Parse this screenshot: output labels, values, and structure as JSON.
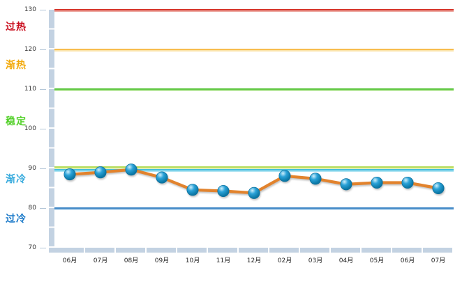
{
  "chart_data": {
    "type": "line",
    "title": "",
    "xlabel": "",
    "ylabel": "",
    "grid": false,
    "legend": false,
    "categories": [
      "06月",
      "07月",
      "08月",
      "09月",
      "10月",
      "11月",
      "12月",
      "02月",
      "03月",
      "04月",
      "05月",
      "06月",
      "07月"
    ],
    "series": [
      {
        "values": [
          88.5,
          89,
          89.7,
          87.7,
          84.6,
          84.3,
          83.8,
          88.1,
          87.4,
          86,
          86.4,
          86.4,
          85
        ]
      }
    ],
    "ylim": [
      70,
      130
    ],
    "yticks": [
      130,
      120,
      110,
      100,
      90,
      80,
      70
    ],
    "thresholds": [
      {
        "value": 130,
        "color": "#d6342a",
        "glow": "#eda79f"
      },
      {
        "value": 120,
        "color": "#f8bd4d",
        "glow": "#fbe3a8"
      },
      {
        "value": 110,
        "color": "#5ec741",
        "glow": "#b5e69c"
      },
      {
        "value": 90.4,
        "color": "#b5db58",
        "glow": "#ddefb2"
      },
      {
        "value": 89.7,
        "color": "#3fbcdf",
        "glow": "#b0e4f2"
      },
      {
        "value": 80,
        "color": "#3f87c6",
        "glow": "#abceea"
      }
    ],
    "zones": [
      {
        "label": "过热",
        "color": "#c90d1d",
        "value": 125.4
      },
      {
        "label": "渐热",
        "color": "#f2a90a",
        "value": 115.8
      },
      {
        "label": "稳定",
        "color": "#52d028",
        "value": 101.5
      },
      {
        "label": "渐冷",
        "color": "#35aadd",
        "value": 87.1
      },
      {
        "label": "过冷",
        "color": "#1878c8",
        "value": 77.0
      }
    ],
    "series_color": "#e2832d",
    "axis_color": "#c3d2e2",
    "tick_color": "#b3c6d8",
    "marker": {
      "highlight": "#cfeffb",
      "mid": "#2aa2d8",
      "edge": "#0d7aa8",
      "rim": "#0b6f9c"
    }
  }
}
